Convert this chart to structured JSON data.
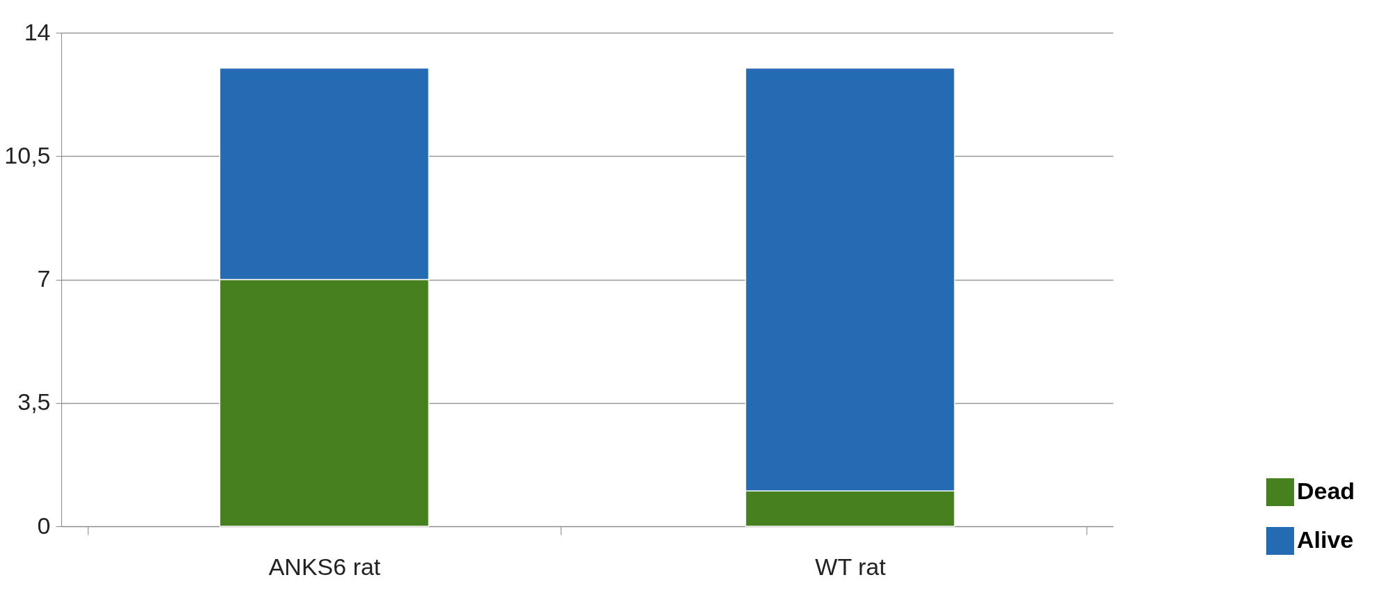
{
  "chart_data": {
    "type": "bar",
    "stacked": true,
    "categories": [
      "ANKS6 rat",
      "WT rat"
    ],
    "series": [
      {
        "name": "Dead",
        "color": "#47801e",
        "values": [
          7,
          1
        ]
      },
      {
        "name": "Alive",
        "color": "#256bb3",
        "values": [
          6,
          12
        ]
      }
    ],
    "ylim": [
      0,
      14
    ],
    "yticks": [
      0,
      {
        "value": 3.5,
        "label": "3,5"
      },
      7,
      {
        "value": 10.5,
        "label": "10,5"
      },
      14
    ],
    "grid": "y",
    "legend": "bottom right"
  }
}
